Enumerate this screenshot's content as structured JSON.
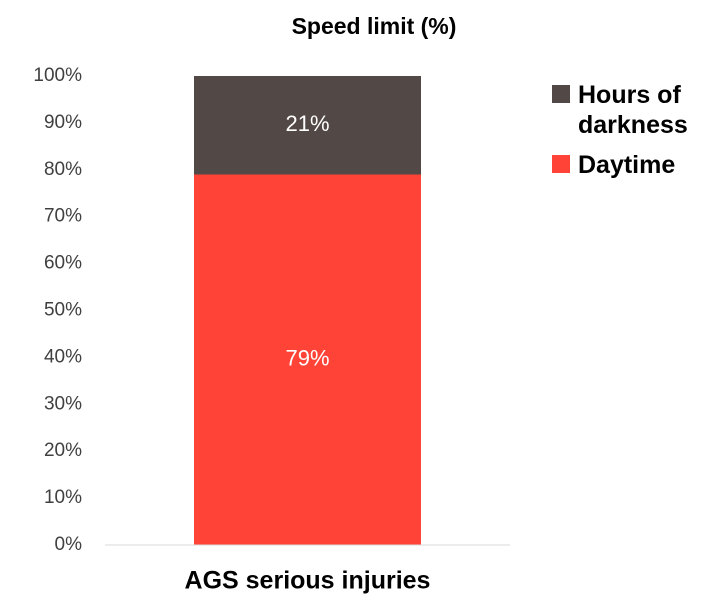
{
  "chart_data": {
    "type": "stacked_bar",
    "title": "Speed limit (%)",
    "categories": [
      "AGS serious injuries"
    ],
    "series": [
      {
        "name": "Daytime",
        "color": "#ff4337",
        "values": [
          79
        ],
        "value_labels": [
          "79%"
        ]
      },
      {
        "name": "Hours of darkness",
        "color": "#524845",
        "values": [
          21
        ],
        "value_labels": [
          "21%"
        ]
      }
    ],
    "ylim": [
      0,
      100
    ],
    "yticks": [
      {
        "value": 0,
        "label": "0%"
      },
      {
        "value": 10,
        "label": "10%"
      },
      {
        "value": 20,
        "label": "20%"
      },
      {
        "value": 30,
        "label": "30%"
      },
      {
        "value": 40,
        "label": "40%"
      },
      {
        "value": 50,
        "label": "50%"
      },
      {
        "value": 60,
        "label": "60%"
      },
      {
        "value": 70,
        "label": "70%"
      },
      {
        "value": 80,
        "label": "80%"
      },
      {
        "value": 90,
        "label": "90%"
      },
      {
        "value": 100,
        "label": "100%"
      }
    ],
    "legend": "right"
  }
}
